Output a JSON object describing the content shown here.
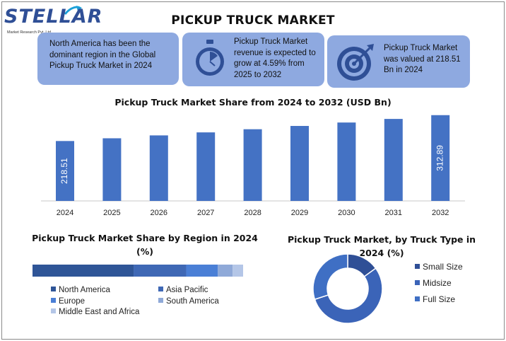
{
  "logo": {
    "text": "STELLAR",
    "subtext": "Market Research Pvt. Ltd."
  },
  "title": "PICKUP TRUCK MARKET",
  "cards": [
    {
      "text": "North America has been the dominant region in the Global Pickup Truck Market in 2024"
    },
    {
      "text": "Pickup Truck Market revenue is expected to grow at 4.59% from 2025 to 2032",
      "icon": "stopwatch-icon"
    },
    {
      "text": "Pickup Truck Market was valued at 218.51 Bn in 2024",
      "icon": "target-icon"
    }
  ],
  "colors": {
    "bar": "#4472c4",
    "card": "#8ea9e0"
  },
  "chart_data": [
    {
      "type": "bar",
      "title": "Pickup Truck Market  Share from 2024 to 2032 (USD Bn)",
      "categories": [
        "2024",
        "2025",
        "2026",
        "2027",
        "2028",
        "2029",
        "2030",
        "2031",
        "2032"
      ],
      "values": [
        218.51,
        228.5,
        239.0,
        250.0,
        261.5,
        273.5,
        286.0,
        299.1,
        312.89
      ],
      "data_labels": [
        "218.51",
        "",
        "",
        "",
        "",
        "",
        "",
        "",
        "312.89"
      ],
      "ylim": [
        0,
        320
      ]
    },
    {
      "type": "bar",
      "orientation": "horizontal-stacked",
      "title": "Pickup Truck Market Share by Region in 2024 (%)",
      "categories": [
        "North America",
        "Asia Pacific",
        "Europe",
        "South America",
        "Middle East and Africa"
      ],
      "values": [
        48,
        25,
        15,
        7,
        5
      ],
      "colors": [
        "#2f5597",
        "#3f68b5",
        "#4a7fd6",
        "#8fa9d8",
        "#b4c6e7"
      ],
      "legend": "bottom"
    },
    {
      "type": "pie",
      "style": "donut",
      "title": "Pickup Truck Market, by Truck Type in 2024 (%)",
      "categories": [
        "Small Size",
        "Midsize",
        "Full Size"
      ],
      "values": [
        15,
        55,
        30
      ],
      "colors": [
        "#2f4f96",
        "#3b64b8",
        "#3f6fc4"
      ],
      "legend": "right"
    }
  ]
}
